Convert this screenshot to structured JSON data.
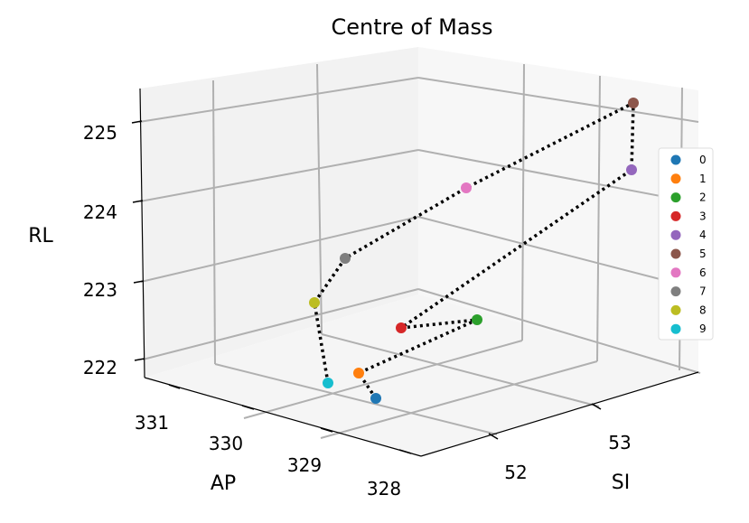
{
  "chart_data": {
    "type": "scatter",
    "projection": "3d",
    "title": "Centre of Mass",
    "xlabel": "SI",
    "ylabel": "AP",
    "zlabel": "RL",
    "x_ticks": [
      "52",
      "53"
    ],
    "y_ticks": [
      "328",
      "329",
      "330",
      "331"
    ],
    "z_ticks": [
      "222",
      "223",
      "224",
      "225"
    ],
    "legend_position": "right",
    "path_style": "black dotted line connecting points in order",
    "points": [
      {
        "label": "0",
        "color": "#1f77b4"
      },
      {
        "label": "1",
        "color": "#ff7f0e"
      },
      {
        "label": "2",
        "color": "#2ca02c"
      },
      {
        "label": "3",
        "color": "#d62728"
      },
      {
        "label": "4",
        "color": "#9467bd"
      },
      {
        "label": "5",
        "color": "#8c564b"
      },
      {
        "label": "6",
        "color": "#e377c2"
      },
      {
        "label": "7",
        "color": "#7f7f7f"
      },
      {
        "label": "8",
        "color": "#bcbd22"
      },
      {
        "label": "9",
        "color": "#17becf"
      }
    ]
  }
}
